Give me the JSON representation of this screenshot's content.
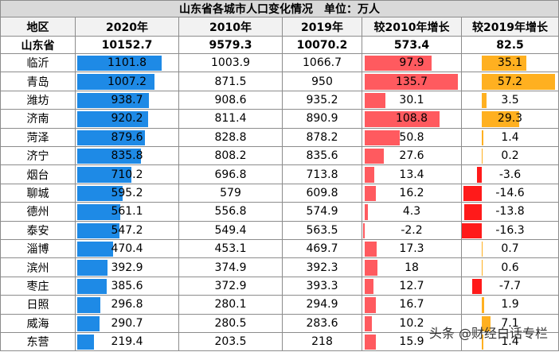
{
  "table": {
    "title": "山东省各城市人口变化情况　单位：万人",
    "header": [
      "地区",
      "2020年",
      "2010年",
      "2019年",
      "较2010年增长",
      "较2019年增长"
    ],
    "total": [
      "山东省",
      10152.7,
      9579.3,
      10070.2,
      573.4,
      82.5
    ],
    "rows": [
      [
        "临沂",
        1101.8,
        1003.9,
        1066.7,
        97.9,
        35.1
      ],
      [
        "青岛",
        1007.2,
        871.5,
        950,
        135.7,
        57.2
      ],
      [
        "潍坊",
        938.7,
        908.6,
        935.2,
        30.1,
        3.5
      ],
      [
        "济南",
        920.2,
        811.4,
        890.9,
        108.8,
        29.3
      ],
      [
        "菏泽",
        879.6,
        828.8,
        878.2,
        50.8,
        1.4
      ],
      [
        "济宁",
        835.8,
        808.2,
        835.6,
        27.6,
        0.2
      ],
      [
        "烟台",
        710.2,
        696.8,
        713.8,
        13.4,
        -3.6
      ],
      [
        "聊城",
        595.2,
        579,
        609.8,
        16.2,
        -14.6
      ],
      [
        "德州",
        561.1,
        556.8,
        574.9,
        4.3,
        -13.8
      ],
      [
        "泰安",
        547.2,
        549.4,
        563.5,
        -2.2,
        -16.3
      ],
      [
        "淄博",
        470.4,
        453.1,
        469.7,
        17.3,
        0.7
      ],
      [
        "滨州",
        392.9,
        374.9,
        392.3,
        18,
        0.6
      ],
      [
        "枣庄",
        385.6,
        372.9,
        393.3,
        12.7,
        -7.7
      ],
      [
        "日照",
        296.8,
        280.1,
        294.9,
        16.7,
        1.9
      ],
      [
        "威海",
        290.7,
        280.5,
        283.6,
        10.2,
        7.1
      ],
      [
        "东营",
        219.4,
        203.5,
        218,
        15.9,
        1.4
      ]
    ]
  },
  "watermark": "头条 @财经白话专栏"
}
